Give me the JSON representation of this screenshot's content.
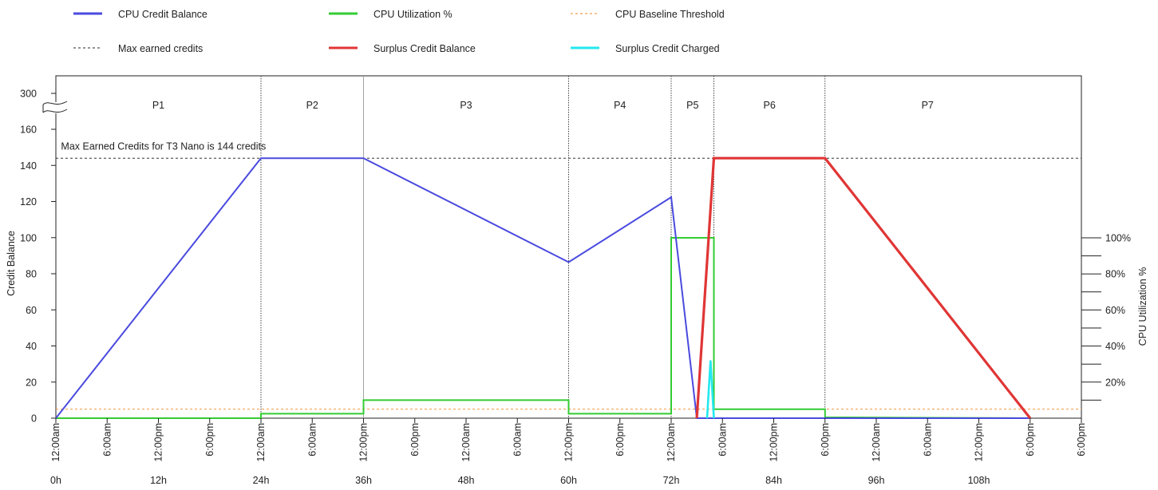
{
  "legend": [
    {
      "label": "CPU Credit Balance",
      "color": "#4a4adf",
      "style": "solid"
    },
    {
      "label": "CPU Utilization %",
      "color": "#33cc33",
      "style": "solid"
    },
    {
      "label": "CPU Baseline Threshold",
      "color": "#f5a050",
      "style": "dashed"
    },
    {
      "label": "Max earned credits",
      "color": "#555555",
      "style": "dashed"
    },
    {
      "label": "Surplus Credit Balance",
      "color": "#e03535",
      "style": "solid"
    },
    {
      "label": "Surplus Credit Charged",
      "color": "#22e8ee",
      "style": "solid"
    }
  ],
  "chart_data": {
    "type": "line",
    "title": "",
    "xlabel": "",
    "ylabel": "Credit Balance",
    "y2label": "CPU Utilization %",
    "xlim": [
      0,
      120
    ],
    "ylim": [
      0,
      160
    ],
    "y_break": {
      "label": "300",
      "above": 160
    },
    "y_ticks": [
      0,
      20,
      40,
      60,
      80,
      100,
      120,
      140,
      160
    ],
    "y_tick_labels": [
      "0",
      "20",
      "40",
      "60",
      "80",
      "100",
      "120",
      "140",
      "160"
    ],
    "y2_ticks": [
      20,
      40,
      60,
      80,
      100
    ],
    "y2_tick_labels": [
      "20%",
      "40%",
      "60%",
      "80%",
      "100%"
    ],
    "x_time_ticks": [
      {
        "x": 0,
        "label": "12:00am"
      },
      {
        "x": 6,
        "label": "6:00am"
      },
      {
        "x": 12,
        "label": "12:00pm"
      },
      {
        "x": 18,
        "label": "6:00pm"
      },
      {
        "x": 24,
        "label": "12:00am"
      },
      {
        "x": 30,
        "label": "6:00am"
      },
      {
        "x": 36,
        "label": "12:00pm"
      },
      {
        "x": 42,
        "label": "6:00pm"
      },
      {
        "x": 48,
        "label": "12:00am"
      },
      {
        "x": 54,
        "label": "6:00am"
      },
      {
        "x": 60,
        "label": "12:00pm"
      },
      {
        "x": 66,
        "label": "6:00pm"
      },
      {
        "x": 72,
        "label": "12:00am"
      },
      {
        "x": 78,
        "label": "6:00am"
      },
      {
        "x": 84,
        "label": "12:00pm"
      },
      {
        "x": 90,
        "label": "6:00pm"
      },
      {
        "x": 96,
        "label": "12:00am"
      },
      {
        "x": 102,
        "label": "6:00am"
      },
      {
        "x": 108,
        "label": "12:00pm"
      },
      {
        "x": 114,
        "label": "6:00pm"
      }
    ],
    "x_hour_ticks": [
      {
        "x": 0,
        "label": "0h"
      },
      {
        "x": 12,
        "label": "12h"
      },
      {
        "x": 24,
        "label": "24h"
      },
      {
        "x": 36,
        "label": "36h"
      },
      {
        "x": 48,
        "label": "48h"
      },
      {
        "x": 60,
        "label": "60h"
      },
      {
        "x": 72,
        "label": "72h"
      },
      {
        "x": 84,
        "label": "84h"
      },
      {
        "x": 96,
        "label": "96h"
      },
      {
        "x": 108,
        "label": "108h"
      }
    ],
    "periods": [
      {
        "label": "P1",
        "start": 0,
        "end": 24
      },
      {
        "label": "P2",
        "start": 24,
        "end": 36
      },
      {
        "label": "P3",
        "start": 36,
        "end": 60
      },
      {
        "label": "P4",
        "start": 60,
        "end": 72
      },
      {
        "label": "P5",
        "start": 72,
        "end": 77
      },
      {
        "label": "P6",
        "start": 77,
        "end": 90
      },
      {
        "label": "P7",
        "start": 90,
        "end": 114
      }
    ],
    "period_boundaries": [
      24,
      36,
      60,
      72,
      77,
      90
    ],
    "annotations": [
      {
        "text": "Max Earned Credits for T3 Nano is 144 credits",
        "x": 0.6,
        "y": 150
      }
    ],
    "max_earned_credits": 144,
    "baseline_threshold_pct": 5,
    "series": [
      {
        "name": "CPU Credit Balance",
        "axis": "left",
        "color": "#4a4adf",
        "x": [
          0,
          24,
          36,
          60,
          72,
          75,
          77,
          90,
          114
        ],
        "y": [
          0,
          144,
          144,
          86.4,
          122.4,
          0,
          0,
          0,
          0
        ]
      },
      {
        "name": "CPU Utilization %",
        "axis": "right",
        "color": "#33cc33",
        "step": true,
        "x": [
          0,
          24,
          24,
          36,
          36,
          60,
          60,
          72,
          72,
          77,
          77,
          90,
          90,
          114
        ],
        "y": [
          0,
          0,
          2.5,
          2.5,
          10,
          10,
          2.5,
          2.5,
          100,
          100,
          5,
          5,
          0.5,
          0
        ]
      },
      {
        "name": "Surplus Credit Balance",
        "axis": "left",
        "color": "#e03535",
        "x": [
          75,
          77,
          90,
          114
        ],
        "y": [
          0,
          144,
          144,
          0
        ]
      },
      {
        "name": "Surplus Credit Charged",
        "axis": "left",
        "color": "#22e8ee",
        "x": [
          76.2,
          76.6,
          77
        ],
        "y": [
          0,
          32,
          0
        ]
      }
    ]
  }
}
